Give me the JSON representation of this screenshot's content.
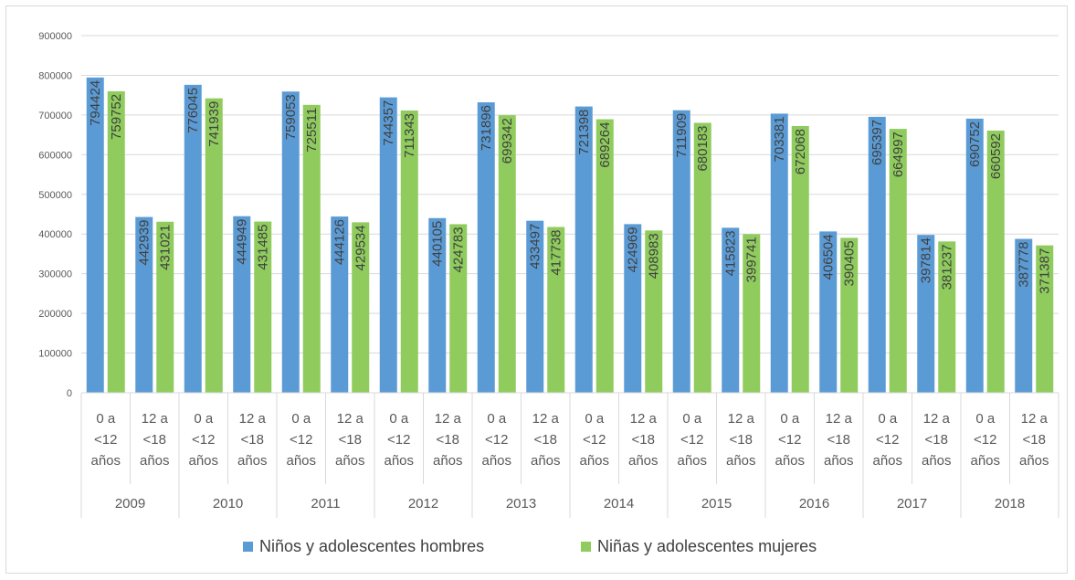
{
  "chart_data": {
    "type": "bar",
    "title": "",
    "xlabel": "",
    "ylabel": "",
    "ylim": [
      0,
      900000
    ],
    "yticks": [
      0,
      100000,
      200000,
      300000,
      400000,
      500000,
      600000,
      700000,
      800000,
      900000
    ],
    "grid": true,
    "legend_position": "bottom",
    "years": [
      "2009",
      "2010",
      "2011",
      "2012",
      "2013",
      "2014",
      "2015",
      "2016",
      "2017",
      "2018"
    ],
    "age_groups": [
      [
        "0 a",
        "<12",
        "años"
      ],
      [
        "12 a",
        "<18",
        "años"
      ]
    ],
    "series": [
      {
        "name": "Niños y adolescentes hombres",
        "color": "#5b9bd5",
        "values": [
          [
            794424,
            442939
          ],
          [
            776045,
            444949
          ],
          [
            759053,
            444126
          ],
          [
            744357,
            440105
          ],
          [
            731896,
            433497
          ],
          [
            721398,
            424969
          ],
          [
            711909,
            415823
          ],
          [
            703381,
            406504
          ],
          [
            695397,
            397814
          ],
          [
            690752,
            387778
          ]
        ]
      },
      {
        "name": "Niñas y adolescentes mujeres",
        "color": "#8fcb5d",
        "values": [
          [
            759752,
            431021
          ],
          [
            741939,
            431485
          ],
          [
            725511,
            429534
          ],
          [
            711343,
            424783
          ],
          [
            699342,
            417738
          ],
          [
            689264,
            408983
          ],
          [
            680183,
            399741
          ],
          [
            672068,
            390405
          ],
          [
            664997,
            381237
          ],
          [
            660592,
            371387
          ]
        ]
      }
    ]
  }
}
